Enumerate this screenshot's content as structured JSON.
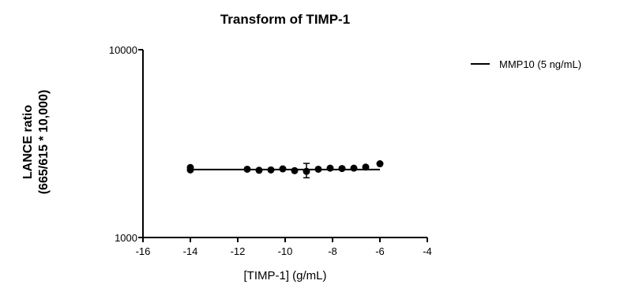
{
  "chart_data": {
    "type": "scatter",
    "title": "Transform of TIMP-1",
    "xlabel": "[TIMP-1] (g/mL)",
    "ylabel_line1": "LANCE ratio",
    "ylabel_line2": "(665/615 * 10,000)",
    "xlim": [
      -16,
      -4
    ],
    "ylim": [
      1000,
      10000
    ],
    "yscale": "log",
    "xticks": [
      -16,
      -14,
      -12,
      -10,
      -8,
      -6,
      -4
    ],
    "xtick_labels": [
      "-16",
      "-14",
      "-12",
      "-10",
      "-8",
      "-6",
      "-4"
    ],
    "yticks": [
      1000,
      10000
    ],
    "ytick_labels": [
      "1000",
      "10000"
    ],
    "legend_position": "top-right",
    "grid": false,
    "series": [
      {
        "name": "MMP10 (5 ng/mL)",
        "color": "#000000",
        "points": [
          {
            "x": -14,
            "y": 2360
          },
          {
            "x": -14,
            "y": 2290
          },
          {
            "x": -11.6,
            "y": 2310
          },
          {
            "x": -11.1,
            "y": 2280
          },
          {
            "x": -10.6,
            "y": 2290
          },
          {
            "x": -10.1,
            "y": 2320
          },
          {
            "x": -9.6,
            "y": 2270
          },
          {
            "x": -9.1,
            "y": 2250,
            "err_low": 2080,
            "err_high": 2480
          },
          {
            "x": -8.6,
            "y": 2310
          },
          {
            "x": -8.1,
            "y": 2340
          },
          {
            "x": -7.6,
            "y": 2330
          },
          {
            "x": -7.1,
            "y": 2340
          },
          {
            "x": -6.6,
            "y": 2370
          },
          {
            "x": -6.0,
            "y": 2470
          }
        ],
        "fit": [
          {
            "x": -14,
            "y": 2300
          },
          {
            "x": -6.0,
            "y": 2300
          }
        ]
      }
    ]
  }
}
